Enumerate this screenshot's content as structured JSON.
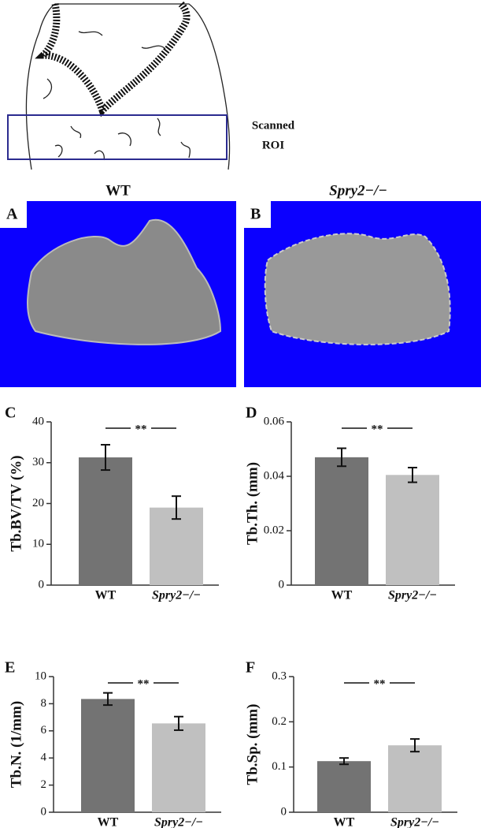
{
  "figure": {
    "roi_label": [
      "Scanned",
      "ROI"
    ],
    "columns": [
      "WT",
      "Spry2−/−"
    ],
    "panels": [
      "A",
      "B"
    ]
  },
  "chart_data": [
    {
      "type": "bar",
      "panel": "C",
      "ylabel": "Tb.BV/TV (%)",
      "categories": [
        "WT",
        "Spry2−/−"
      ],
      "values": [
        31.3,
        19
      ],
      "errors": [
        3.1,
        2.8
      ],
      "colors": [
        "#737373",
        "#c0c0c0"
      ],
      "annotation": "**",
      "ylim": [
        0,
        40
      ],
      "yticks": [
        0,
        10,
        20,
        30,
        40
      ]
    },
    {
      "type": "bar",
      "panel": "D",
      "ylabel": "Tb.Th. (mm)",
      "categories": [
        "WT",
        "Spry2−/−"
      ],
      "values": [
        0.047,
        0.0405
      ],
      "errors": [
        0.0033,
        0.0027
      ],
      "colors": [
        "#737373",
        "#c0c0c0"
      ],
      "annotation": "**",
      "ylim": [
        0,
        0.06
      ],
      "yticks": [
        0,
        0.02,
        0.04,
        0.06
      ]
    },
    {
      "type": "bar",
      "panel": "E",
      "ylabel": "Tb.N. (1/mm)",
      "categories": [
        "WT",
        "Spry2−/−"
      ],
      "values": [
        8.35,
        6.55
      ],
      "errors": [
        0.45,
        0.5
      ],
      "colors": [
        "#737373",
        "#c0c0c0"
      ],
      "annotation": "**",
      "ylim": [
        0,
        10
      ],
      "yticks": [
        0,
        2,
        4,
        6,
        8,
        10
      ]
    },
    {
      "type": "bar",
      "panel": "F",
      "ylabel": "Tb.Sp. (mm)",
      "categories": [
        "WT",
        "Spry2−/−"
      ],
      "values": [
        0.113,
        0.148
      ],
      "errors": [
        0.007,
        0.014
      ],
      "colors": [
        "#737373",
        "#c0c0c0"
      ],
      "annotation": "**",
      "ylim": [
        0,
        0.3
      ],
      "yticks": [
        0,
        0.1,
        0.2,
        0.3
      ]
    }
  ]
}
